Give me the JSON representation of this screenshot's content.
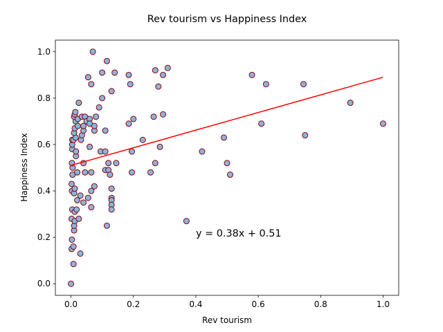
{
  "chart_data": {
    "type": "scatter",
    "title": "Rev tourism vs Happiness Index",
    "xlabel": "Rev tourism",
    "ylabel": "Happiness Index",
    "xlim": [
      -0.05,
      1.05
    ],
    "ylim": [
      -0.05,
      1.05
    ],
    "x_ticks": [
      0.0,
      0.2,
      0.4,
      0.6,
      0.8,
      1.0
    ],
    "x_tick_labels": [
      "0.0",
      "0.2",
      "0.4",
      "0.6",
      "0.8",
      "1.0"
    ],
    "y_ticks": [
      0.0,
      0.2,
      0.4,
      0.6,
      0.8,
      1.0
    ],
    "y_tick_labels": [
      "0.0",
      "0.2",
      "0.4",
      "0.6",
      "0.8",
      "1.0"
    ],
    "grid": false,
    "marker_face_color": "#87b6e0",
    "marker_edge_color": "#8b0000",
    "fit_line_color": "#ff0000",
    "annotation": "y = 0.38x + 0.51",
    "annotation_color": "#ff0000",
    "fit": {
      "slope": 0.38,
      "intercept": 0.51,
      "x_range": [
        0.0,
        1.0
      ]
    },
    "points": [
      [
        0.0,
        0.0
      ],
      [
        0.002,
        0.15
      ],
      [
        0.003,
        0.19
      ],
      [
        0.002,
        0.28
      ],
      [
        0.004,
        0.32
      ],
      [
        0.003,
        0.4
      ],
      [
        0.002,
        0.43
      ],
      [
        0.005,
        0.47
      ],
      [
        0.005,
        0.5
      ],
      [
        0.003,
        0.52
      ],
      [
        0.004,
        0.58
      ],
      [
        0.004,
        0.6
      ],
      [
        0.004,
        0.62
      ],
      [
        0.008,
        0.085
      ],
      [
        0.008,
        0.16
      ],
      [
        0.01,
        0.23
      ],
      [
        0.01,
        0.25
      ],
      [
        0.012,
        0.27
      ],
      [
        0.012,
        0.31
      ],
      [
        0.01,
        0.39
      ],
      [
        0.012,
        0.41
      ],
      [
        0.008,
        0.62
      ],
      [
        0.015,
        0.63
      ],
      [
        0.01,
        0.65
      ],
      [
        0.012,
        0.67
      ],
      [
        0.015,
        0.7
      ],
      [
        0.01,
        0.72
      ],
      [
        0.012,
        0.73
      ],
      [
        0.014,
        0.74
      ],
      [
        0.016,
        0.55
      ],
      [
        0.016,
        0.57
      ],
      [
        0.02,
        0.48
      ],
      [
        0.02,
        0.36
      ],
      [
        0.018,
        0.32
      ],
      [
        0.022,
        0.68
      ],
      [
        0.022,
        0.71
      ],
      [
        0.025,
        0.78
      ],
      [
        0.025,
        0.28
      ],
      [
        0.03,
        0.38
      ],
      [
        0.03,
        0.13
      ],
      [
        0.032,
        0.62
      ],
      [
        0.035,
        0.64
      ],
      [
        0.035,
        0.72
      ],
      [
        0.04,
        0.66
      ],
      [
        0.04,
        0.68
      ],
      [
        0.04,
        0.52
      ],
      [
        0.04,
        0.35
      ],
      [
        0.045,
        0.72
      ],
      [
        0.045,
        0.48
      ],
      [
        0.05,
        0.7
      ],
      [
        0.055,
        0.89
      ],
      [
        0.055,
        0.37
      ],
      [
        0.06,
        0.59
      ],
      [
        0.06,
        0.71
      ],
      [
        0.06,
        0.69
      ],
      [
        0.065,
        0.86
      ],
      [
        0.065,
        0.4
      ],
      [
        0.065,
        0.33
      ],
      [
        0.065,
        0.48
      ],
      [
        0.07,
        1.0
      ],
      [
        0.075,
        0.66
      ],
      [
        0.075,
        0.68
      ],
      [
        0.075,
        0.42
      ],
      [
        0.08,
        0.72
      ],
      [
        0.09,
        0.76
      ],
      [
        0.095,
        0.57
      ],
      [
        0.1,
        0.91
      ],
      [
        0.1,
        0.8
      ],
      [
        0.11,
        0.57
      ],
      [
        0.11,
        0.49
      ],
      [
        0.11,
        0.66
      ],
      [
        0.115,
        0.96
      ],
      [
        0.115,
        0.25
      ],
      [
        0.12,
        0.49
      ],
      [
        0.12,
        0.52
      ],
      [
        0.125,
        0.47
      ],
      [
        0.13,
        0.83
      ],
      [
        0.13,
        0.41
      ],
      [
        0.13,
        0.37
      ],
      [
        0.13,
        0.36
      ],
      [
        0.13,
        0.34
      ],
      [
        0.13,
        0.32
      ],
      [
        0.14,
        0.91
      ],
      [
        0.145,
        0.52
      ],
      [
        0.185,
        0.9
      ],
      [
        0.185,
        0.69
      ],
      [
        0.19,
        0.86
      ],
      [
        0.195,
        0.48
      ],
      [
        0.195,
        0.57
      ],
      [
        0.2,
        0.71
      ],
      [
        0.23,
        0.62
      ],
      [
        0.255,
        0.48
      ],
      [
        0.265,
        0.72
      ],
      [
        0.27,
        0.52
      ],
      [
        0.27,
        0.92
      ],
      [
        0.28,
        0.85
      ],
      [
        0.285,
        0.59
      ],
      [
        0.295,
        0.9
      ],
      [
        0.295,
        0.73
      ],
      [
        0.31,
        0.93
      ],
      [
        0.37,
        0.27
      ],
      [
        0.42,
        0.57
      ],
      [
        0.49,
        0.63
      ],
      [
        0.5,
        0.52
      ],
      [
        0.51,
        0.47
      ],
      [
        0.58,
        0.9
      ],
      [
        0.61,
        0.69
      ],
      [
        0.625,
        0.86
      ],
      [
        0.745,
        0.86
      ],
      [
        0.75,
        0.64
      ],
      [
        0.895,
        0.78
      ],
      [
        1.0,
        0.69
      ]
    ]
  }
}
